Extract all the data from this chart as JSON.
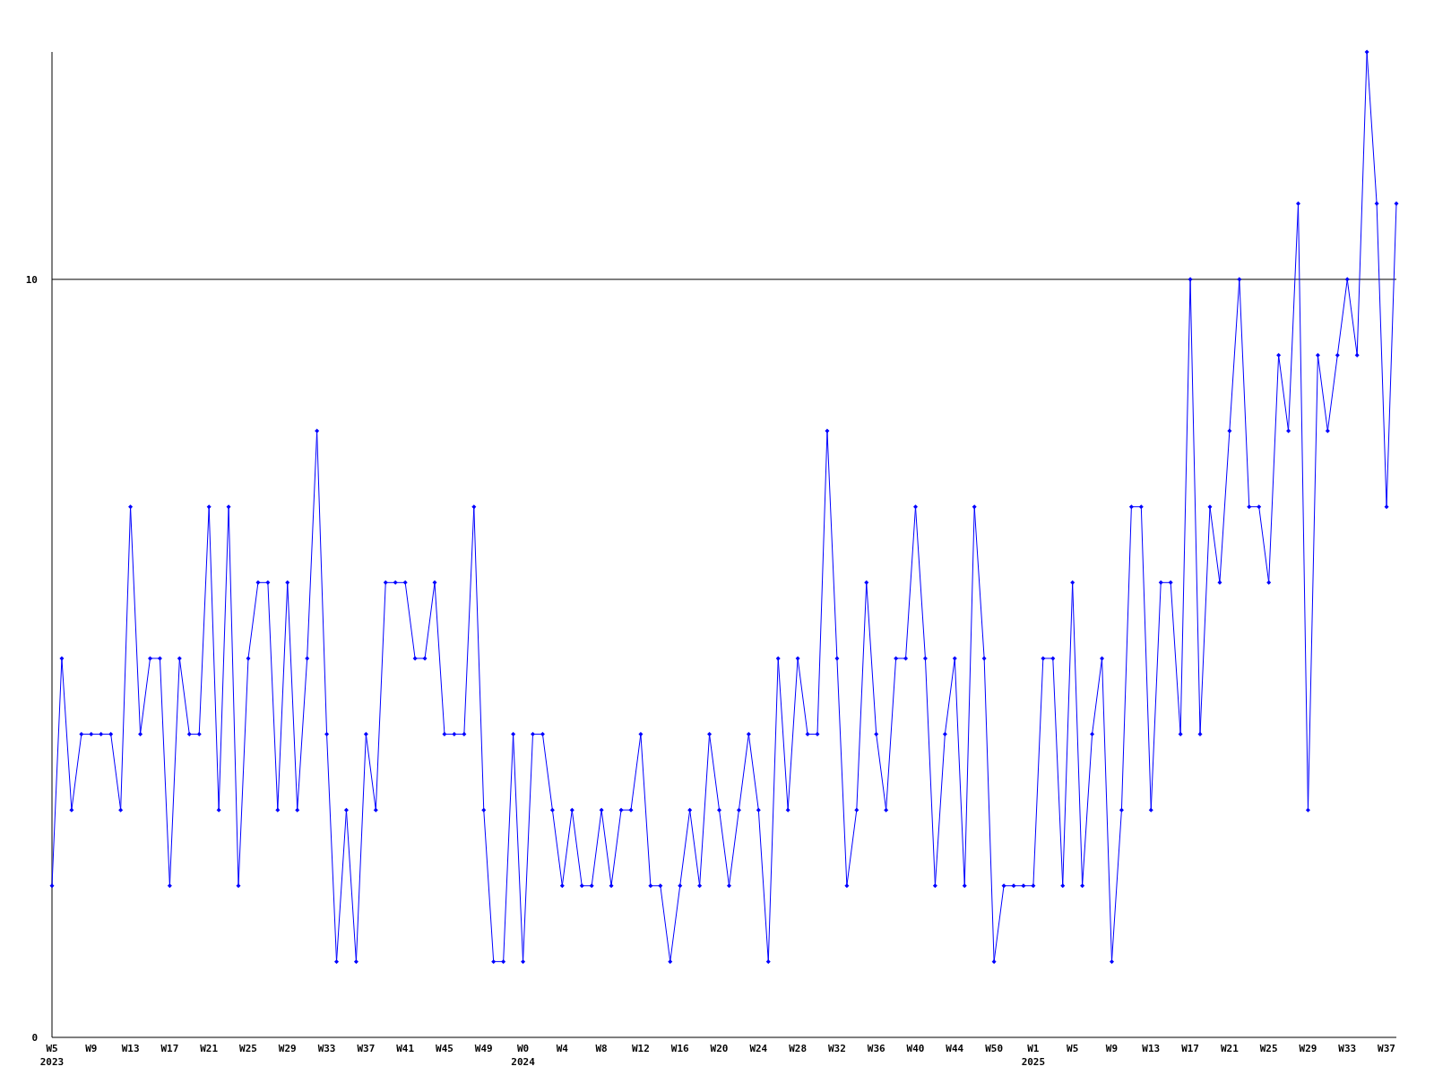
{
  "chart_data": {
    "type": "line",
    "categories": [
      "W5 2023",
      null,
      null,
      null,
      "W9",
      null,
      null,
      null,
      "W13",
      null,
      null,
      null,
      "W17",
      null,
      null,
      null,
      "W21",
      null,
      null,
      null,
      "W25",
      null,
      null,
      null,
      "W29",
      null,
      null,
      null,
      "W33",
      null,
      null,
      null,
      "W37",
      null,
      null,
      null,
      "W41",
      null,
      null,
      null,
      "W45",
      null,
      null,
      null,
      "W49",
      null,
      null,
      null,
      "W0 2024",
      null,
      null,
      null,
      "W4",
      null,
      null,
      null,
      "W8",
      null,
      null,
      null,
      "W12",
      null,
      null,
      null,
      "W16",
      null,
      null,
      null,
      "W20",
      null,
      null,
      null,
      "W24",
      null,
      null,
      null,
      "W28",
      null,
      null,
      null,
      "W32",
      null,
      null,
      null,
      "W36",
      null,
      null,
      null,
      "W40",
      null,
      null,
      null,
      "W44",
      null,
      null,
      null,
      "W50",
      null,
      null,
      null,
      "W1 2025",
      null,
      null,
      null,
      "W5",
      null,
      null,
      null,
      "W9",
      null,
      null,
      null,
      "W13",
      null,
      null,
      null,
      "W17",
      null,
      null,
      null,
      "W21",
      null,
      null,
      null,
      "W25",
      null,
      null,
      null,
      "W29",
      null,
      null,
      null,
      "W33",
      null,
      null,
      null,
      "W37",
      null
    ],
    "series": [
      {
        "color": "#0000ff",
        "values": [
          2,
          5,
          3,
          4,
          4,
          4,
          4,
          3,
          7,
          4,
          5,
          5,
          2,
          5,
          4,
          4,
          7,
          3,
          7,
          2,
          5,
          6,
          6,
          3,
          6,
          3,
          5,
          8,
          4,
          1,
          3,
          1,
          4,
          3,
          6,
          6,
          6,
          5,
          5,
          6,
          4,
          4,
          4,
          7,
          3,
          1,
          1,
          4,
          1,
          4,
          4,
          3,
          2,
          3,
          2,
          2,
          3,
          2,
          3,
          3,
          4,
          2,
          2,
          1,
          2,
          3,
          2,
          4,
          3,
          2,
          3,
          4,
          3,
          1,
          5,
          3,
          5,
          4,
          4,
          8,
          5,
          2,
          3,
          6,
          4,
          3,
          5,
          5,
          7,
          5,
          2,
          4,
          5,
          2,
          7,
          5,
          1,
          2,
          2,
          2,
          2,
          5,
          5,
          2,
          6,
          2,
          4,
          5,
          1,
          3,
          7,
          7,
          3,
          6,
          6,
          4,
          10,
          4,
          7,
          6,
          8,
          10,
          7,
          7,
          6,
          9,
          8,
          11,
          3,
          9,
          8,
          9,
          10,
          9,
          13,
          11,
          7,
          11
        ]
      }
    ],
    "ylim": [
      0,
      13
    ],
    "yticks": [
      0,
      10
    ],
    "grid": "y",
    "marker": "diamond",
    "line_style": "solid"
  }
}
